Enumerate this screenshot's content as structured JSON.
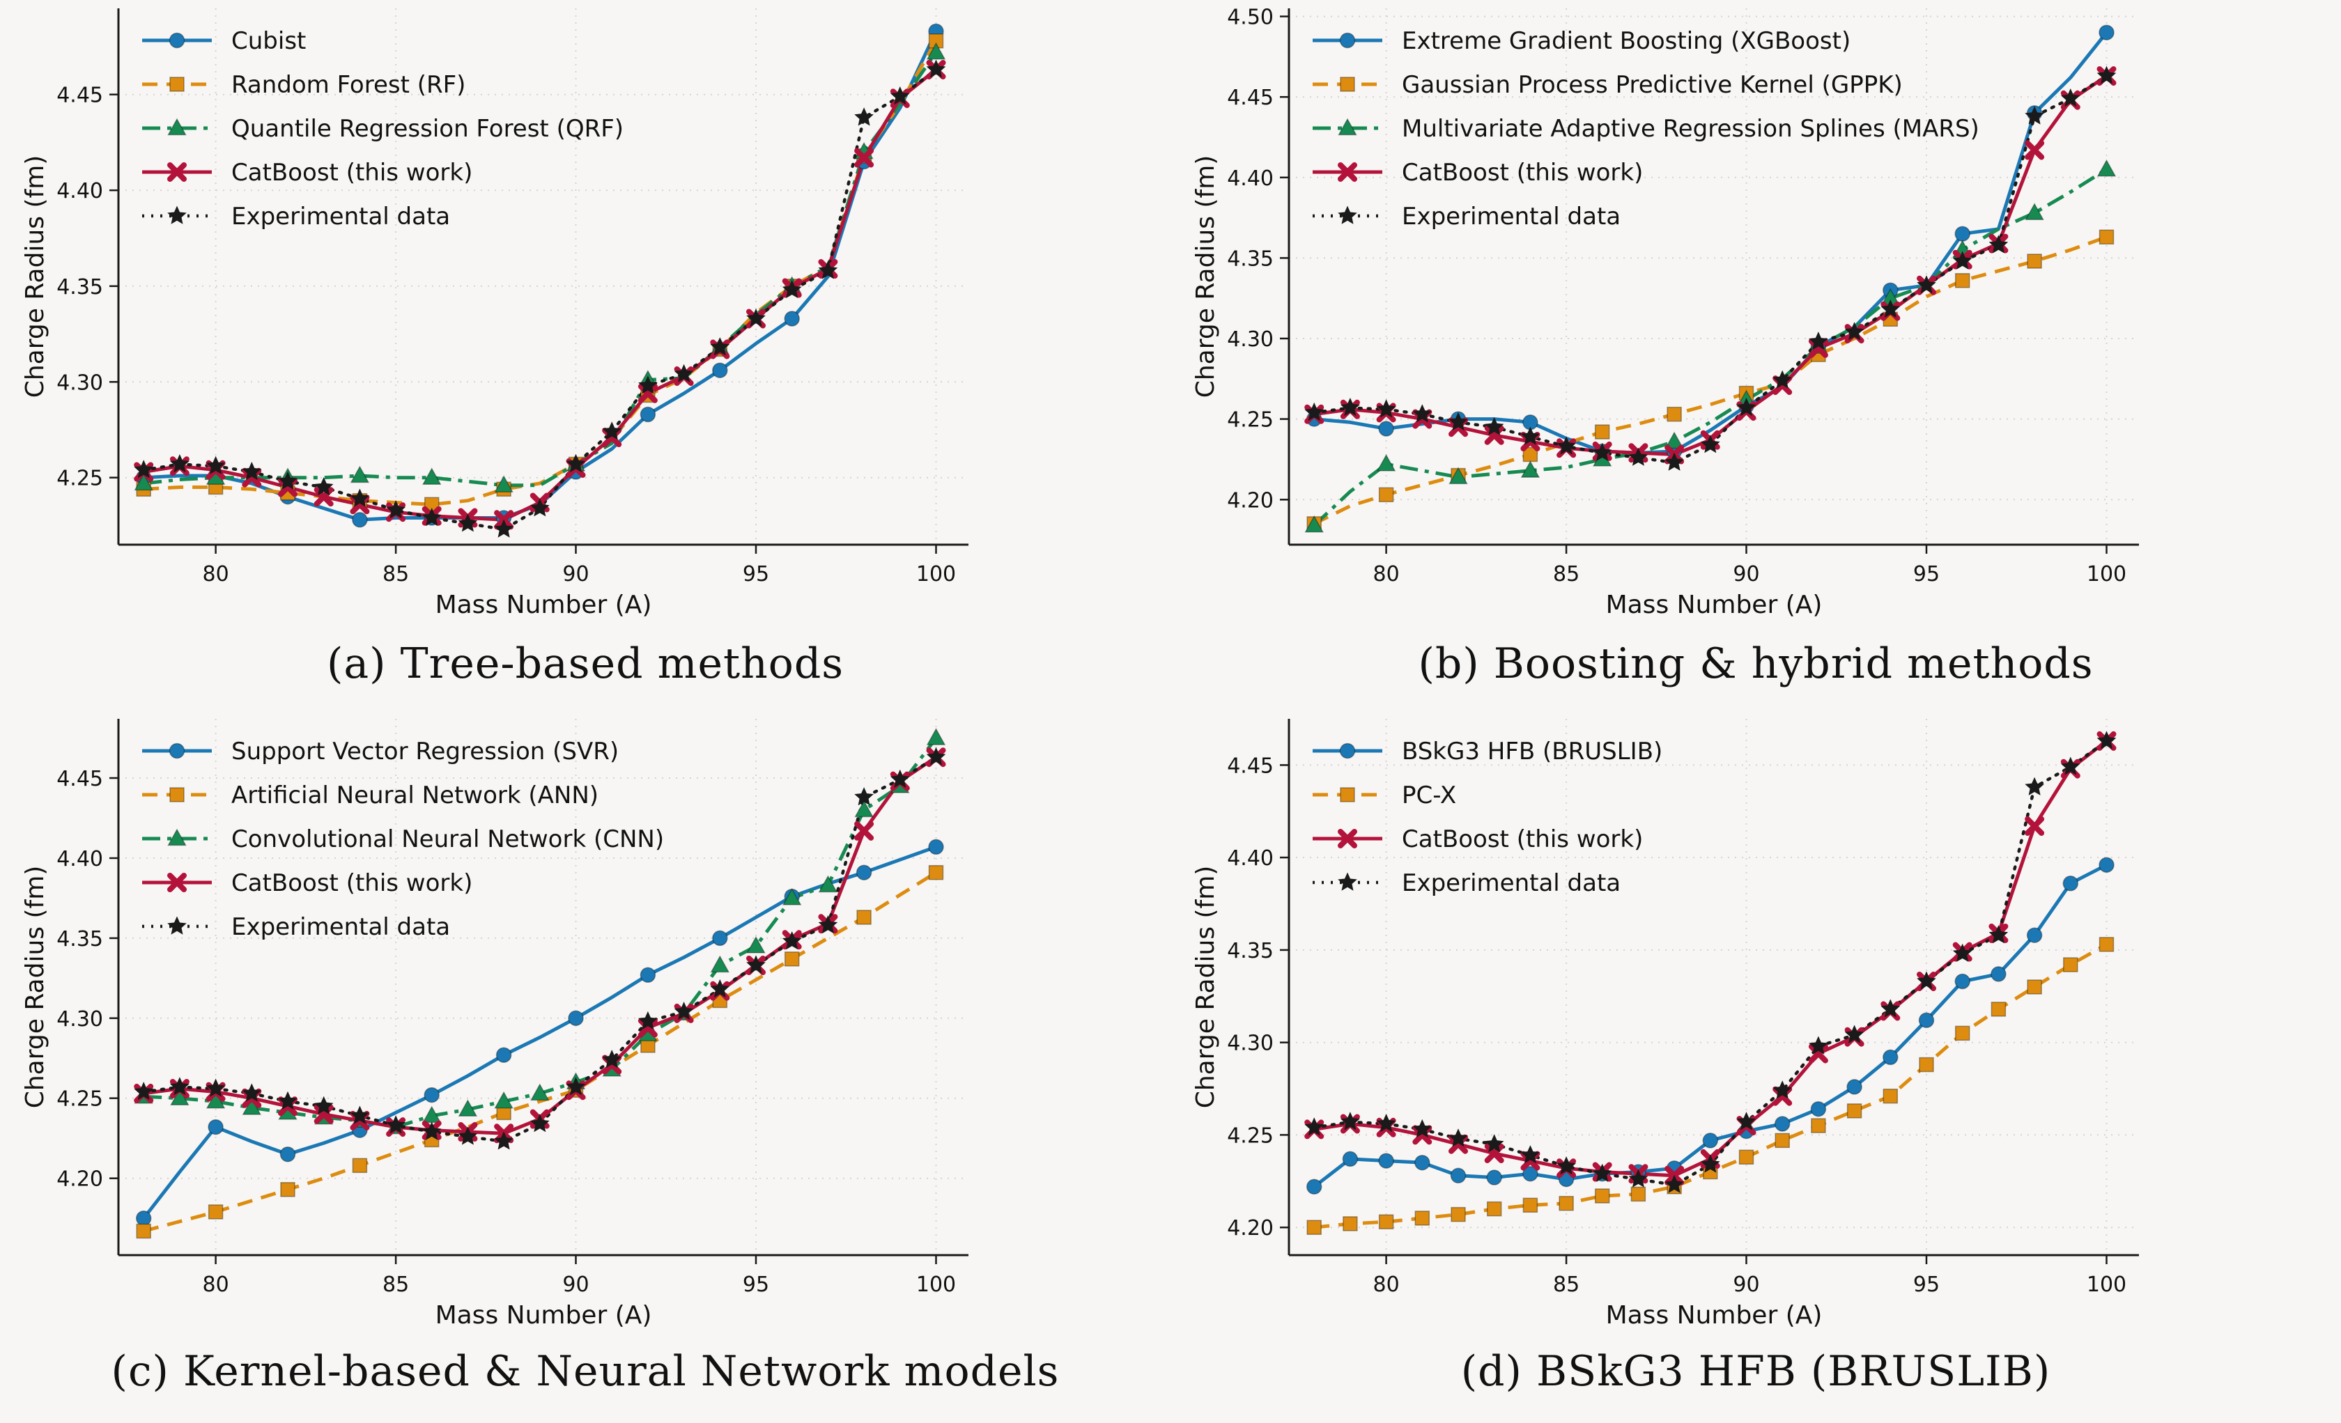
{
  "page": {
    "background": "#f7f6f4"
  },
  "captions": {
    "a": "(a) Tree-based methods",
    "b": "(b) Boosting & hybrid methods",
    "c": "(c) Kernel-based & Neural Network models",
    "d": "(d) BSkG3 HFB (BRUSLIB)"
  },
  "style": {
    "grid_color": "#d4d4d4",
    "spine_color": "#1a1a1a",
    "tick_label_size": 30,
    "axis_label_size": 36,
    "legend_font_size": 34,
    "colors": {
      "blue": "#1b78b4",
      "orange": "#dd8c10",
      "green": "#178a52",
      "crimson": "#b3133a",
      "black": "#1a1a1a"
    }
  },
  "chart_data": [
    {
      "id": "a",
      "type": "line",
      "title": "",
      "xlabel": "Mass Number (A)",
      "ylabel": "Charge Radius (fm)",
      "x": [
        78,
        79,
        80,
        81,
        82,
        83,
        84,
        85,
        86,
        87,
        88,
        89,
        90,
        91,
        92,
        93,
        94,
        95,
        96,
        97,
        98,
        99,
        100
      ],
      "xticks": [
        80,
        85,
        90,
        95,
        100
      ],
      "yticks": [
        4.25,
        4.3,
        4.35,
        4.4,
        4.45
      ],
      "xlim": [
        77.3,
        100.9
      ],
      "ylim": [
        4.215,
        4.495
      ],
      "grid": true,
      "legend_position": "upper left",
      "series": [
        {
          "name": "Cubist",
          "color": "#1b78b4",
          "marker": "circle",
          "line": "solid",
          "marker_every": 2,
          "values": [
            4.25,
            4.251,
            4.251,
            4.247,
            4.24,
            4.234,
            4.228,
            4.229,
            4.229,
            4.229,
            4.229,
            4.236,
            4.253,
            4.265,
            4.283,
            4.294,
            4.306,
            4.32,
            4.333,
            4.355,
            4.415,
            4.443,
            4.483
          ]
        },
        {
          "name": "Random Forest (RF)",
          "color": "#dd8c10",
          "marker": "square",
          "line": "dashed",
          "marker_every": 2,
          "values": [
            4.244,
            4.245,
            4.245,
            4.244,
            4.242,
            4.24,
            4.238,
            4.237,
            4.236,
            4.238,
            4.244,
            4.247,
            4.257,
            4.27,
            4.293,
            4.302,
            4.317,
            4.336,
            4.35,
            4.36,
            4.418,
            4.445,
            4.478
          ]
        },
        {
          "name": "Quantile Regression Forest (QRF)",
          "color": "#178a52",
          "marker": "triangle",
          "line": "dashdot",
          "marker_every": 2,
          "values": [
            4.247,
            4.249,
            4.25,
            4.25,
            4.25,
            4.25,
            4.251,
            4.25,
            4.25,
            4.248,
            4.246,
            4.246,
            4.257,
            4.268,
            4.301,
            4.302,
            4.318,
            4.335,
            4.35,
            4.36,
            4.42,
            4.445,
            4.472
          ]
        },
        {
          "name": "CatBoost (this work)",
          "color": "#b3133a",
          "marker": "x",
          "line": "solid",
          "marker_every": 1,
          "values": [
            4.253,
            4.256,
            4.254,
            4.25,
            4.245,
            4.24,
            4.236,
            4.232,
            4.23,
            4.229,
            4.228,
            4.237,
            4.255,
            4.271,
            4.294,
            4.303,
            4.317,
            4.333,
            4.349,
            4.359,
            4.417,
            4.448,
            4.463
          ]
        },
        {
          "name": "Experimental data",
          "color": "#1a1a1a",
          "marker": "star",
          "line": "dotted",
          "marker_every": 1,
          "values": [
            4.254,
            4.257,
            4.256,
            4.253,
            4.248,
            4.245,
            4.239,
            4.233,
            4.229,
            4.226,
            4.223,
            4.234,
            4.257,
            4.274,
            4.298,
            4.304,
            4.318,
            4.333,
            4.348,
            4.358,
            4.438,
            4.449,
            4.463
          ]
        }
      ]
    },
    {
      "id": "b",
      "type": "line",
      "title": "",
      "xlabel": "Mass Number (A)",
      "ylabel": "Charge Radius (fm)",
      "x": [
        78,
        79,
        80,
        81,
        82,
        83,
        84,
        85,
        86,
        87,
        88,
        89,
        90,
        91,
        92,
        93,
        94,
        95,
        96,
        97,
        98,
        99,
        100
      ],
      "xticks": [
        80,
        85,
        90,
        95,
        100
      ],
      "yticks": [
        4.2,
        4.25,
        4.3,
        4.35,
        4.4,
        4.45,
        4.5
      ],
      "xlim": [
        77.3,
        100.9
      ],
      "ylim": [
        4.172,
        4.505
      ],
      "grid": true,
      "legend_position": "upper left",
      "series": [
        {
          "name": "Extreme Gradient Boosting (XGBoost)",
          "color": "#1b78b4",
          "marker": "circle",
          "line": "solid",
          "marker_every": 2,
          "values": [
            4.25,
            4.248,
            4.244,
            4.247,
            4.25,
            4.25,
            4.248,
            4.238,
            4.23,
            4.229,
            4.23,
            4.243,
            4.258,
            4.27,
            4.295,
            4.307,
            4.33,
            4.333,
            4.365,
            4.368,
            4.44,
            4.462,
            4.49
          ]
        },
        {
          "name": "Gaussian Process Predictive Kernel (GPPK)",
          "color": "#dd8c10",
          "marker": "square",
          "line": "dashed",
          "marker_every": 2,
          "values": [
            4.185,
            4.196,
            4.203,
            4.209,
            4.215,
            4.221,
            4.228,
            4.235,
            4.242,
            4.247,
            4.253,
            4.259,
            4.266,
            4.272,
            4.29,
            4.3,
            4.312,
            4.326,
            4.336,
            4.342,
            4.348,
            4.355,
            4.363
          ]
        },
        {
          "name": "Multivariate Adaptive Regression Splines (MARS)",
          "color": "#178a52",
          "marker": "triangle",
          "line": "dashdot",
          "marker_every": 2,
          "values": [
            4.184,
            4.205,
            4.222,
            4.218,
            4.214,
            4.216,
            4.218,
            4.22,
            4.225,
            4.229,
            4.236,
            4.248,
            4.262,
            4.275,
            4.295,
            4.307,
            4.325,
            4.333,
            4.355,
            4.368,
            4.378,
            4.391,
            4.405
          ]
        },
        {
          "name": "CatBoost (this work)",
          "color": "#b3133a",
          "marker": "x",
          "line": "solid",
          "marker_every": 1,
          "values": [
            4.253,
            4.256,
            4.254,
            4.25,
            4.245,
            4.24,
            4.236,
            4.232,
            4.23,
            4.229,
            4.228,
            4.237,
            4.255,
            4.271,
            4.294,
            4.303,
            4.317,
            4.333,
            4.349,
            4.359,
            4.417,
            4.448,
            4.463
          ]
        },
        {
          "name": "Experimental data",
          "color": "#1a1a1a",
          "marker": "star",
          "line": "dotted",
          "marker_every": 1,
          "values": [
            4.254,
            4.257,
            4.256,
            4.253,
            4.248,
            4.245,
            4.239,
            4.233,
            4.229,
            4.226,
            4.223,
            4.234,
            4.257,
            4.274,
            4.298,
            4.304,
            4.318,
            4.333,
            4.348,
            4.358,
            4.438,
            4.449,
            4.463
          ]
        }
      ]
    },
    {
      "id": "c",
      "type": "line",
      "title": "",
      "xlabel": "Mass Number (A)",
      "ylabel": "Charge Radius (fm)",
      "x": [
        78,
        79,
        80,
        81,
        82,
        83,
        84,
        85,
        86,
        87,
        88,
        89,
        90,
        91,
        92,
        93,
        94,
        95,
        96,
        97,
        98,
        99,
        100
      ],
      "xticks": [
        80,
        85,
        90,
        95,
        100
      ],
      "yticks": [
        4.2,
        4.25,
        4.3,
        4.35,
        4.4,
        4.45
      ],
      "xlim": [
        77.3,
        100.9
      ],
      "ylim": [
        4.152,
        4.487
      ],
      "grid": true,
      "legend_position": "upper left",
      "series": [
        {
          "name": "Support Vector Regression (SVR)",
          "color": "#1b78b4",
          "marker": "circle",
          "line": "solid",
          "marker_every": 2,
          "values": [
            4.175,
            4.204,
            4.232,
            4.223,
            4.215,
            4.222,
            4.23,
            4.241,
            4.252,
            4.264,
            4.277,
            4.288,
            4.3,
            4.313,
            4.327,
            4.338,
            4.35,
            4.363,
            4.376,
            4.384,
            4.391,
            4.399,
            4.407
          ]
        },
        {
          "name": "Artificial Neural Network (ANN)",
          "color": "#dd8c10",
          "marker": "square",
          "line": "dashed",
          "marker_every": 2,
          "values": [
            4.167,
            4.173,
            4.179,
            4.186,
            4.193,
            4.2,
            4.208,
            4.216,
            4.224,
            4.232,
            4.241,
            4.248,
            4.255,
            4.269,
            4.283,
            4.297,
            4.311,
            4.324,
            4.337,
            4.35,
            4.363,
            4.377,
            4.391
          ]
        },
        {
          "name": "Convolutional Neural Network (CNN)",
          "color": "#178a52",
          "marker": "triangle",
          "line": "dashdot",
          "marker_every": 1,
          "values": [
            4.251,
            4.25,
            4.248,
            4.244,
            4.241,
            4.238,
            4.236,
            4.232,
            4.239,
            4.243,
            4.248,
            4.253,
            4.26,
            4.268,
            4.29,
            4.303,
            4.333,
            4.345,
            4.375,
            4.383,
            4.43,
            4.445,
            4.475
          ]
        },
        {
          "name": "CatBoost (this work)",
          "color": "#b3133a",
          "marker": "x",
          "line": "solid",
          "marker_every": 1,
          "values": [
            4.253,
            4.256,
            4.254,
            4.25,
            4.245,
            4.24,
            4.236,
            4.232,
            4.23,
            4.229,
            4.228,
            4.237,
            4.255,
            4.271,
            4.294,
            4.303,
            4.317,
            4.333,
            4.349,
            4.359,
            4.417,
            4.448,
            4.463
          ]
        },
        {
          "name": "Experimental data",
          "color": "#1a1a1a",
          "marker": "star",
          "line": "dotted",
          "marker_every": 1,
          "values": [
            4.254,
            4.257,
            4.256,
            4.253,
            4.248,
            4.245,
            4.239,
            4.233,
            4.229,
            4.226,
            4.223,
            4.234,
            4.257,
            4.274,
            4.298,
            4.304,
            4.318,
            4.333,
            4.348,
            4.358,
            4.438,
            4.449,
            4.463
          ]
        }
      ]
    },
    {
      "id": "d",
      "type": "line",
      "title": "",
      "xlabel": "Mass Number (A)",
      "ylabel": "Charge Radius (fm)",
      "x": [
        78,
        79,
        80,
        81,
        82,
        83,
        84,
        85,
        86,
        87,
        88,
        89,
        90,
        91,
        92,
        93,
        94,
        95,
        96,
        97,
        98,
        99,
        100
      ],
      "xticks": [
        80,
        85,
        90,
        95,
        100
      ],
      "yticks": [
        4.2,
        4.25,
        4.3,
        4.35,
        4.4,
        4.45
      ],
      "xlim": [
        77.3,
        100.9
      ],
      "ylim": [
        4.185,
        4.475
      ],
      "grid": true,
      "legend_position": "upper left",
      "series": [
        {
          "name": "BSkG3 HFB (BRUSLIB)",
          "color": "#1b78b4",
          "marker": "circle",
          "line": "solid",
          "marker_every": 1,
          "values": [
            4.222,
            4.237,
            4.236,
            4.235,
            4.228,
            4.227,
            4.229,
            4.226,
            4.229,
            4.23,
            4.232,
            4.247,
            4.252,
            4.256,
            4.264,
            4.276,
            4.292,
            4.312,
            4.333,
            4.337,
            4.358,
            4.386,
            4.396
          ]
        },
        {
          "name": "PC-X",
          "color": "#dd8c10",
          "marker": "square",
          "line": "dashed",
          "marker_every": 1,
          "values": [
            4.2,
            4.202,
            4.203,
            4.205,
            4.207,
            4.21,
            4.212,
            4.213,
            4.217,
            4.218,
            4.222,
            4.23,
            4.238,
            4.247,
            4.255,
            4.263,
            4.271,
            4.288,
            4.305,
            4.318,
            4.33,
            4.342,
            4.353
          ]
        },
        {
          "name": "CatBoost (this work)",
          "color": "#b3133a",
          "marker": "x",
          "line": "solid",
          "marker_every": 1,
          "values": [
            4.253,
            4.256,
            4.254,
            4.25,
            4.245,
            4.24,
            4.236,
            4.232,
            4.23,
            4.229,
            4.228,
            4.237,
            4.255,
            4.271,
            4.294,
            4.303,
            4.317,
            4.333,
            4.349,
            4.359,
            4.417,
            4.448,
            4.463
          ]
        },
        {
          "name": "Experimental data",
          "color": "#1a1a1a",
          "marker": "star",
          "line": "dotted",
          "marker_every": 1,
          "values": [
            4.254,
            4.257,
            4.256,
            4.253,
            4.248,
            4.245,
            4.239,
            4.233,
            4.229,
            4.226,
            4.223,
            4.234,
            4.257,
            4.274,
            4.298,
            4.304,
            4.318,
            4.333,
            4.348,
            4.358,
            4.438,
            4.449,
            4.463
          ]
        }
      ]
    }
  ]
}
